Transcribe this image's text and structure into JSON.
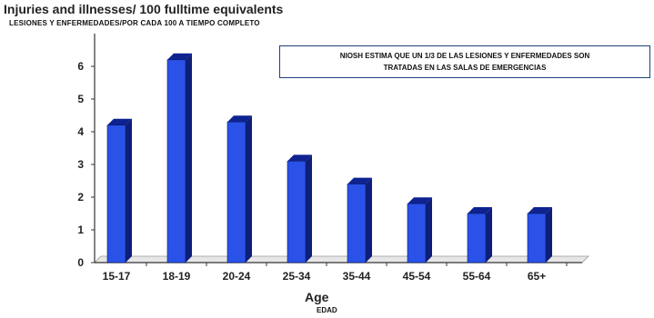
{
  "chart_data": {
    "type": "bar",
    "title": "Injuries and illnesses/ 100 fulltime equivalents",
    "subtitle": "LESIONES Y ENFERMEDADES/POR CADA 100 A TIEMPO COMPLETO",
    "annotation": {
      "line1": "NIOSH  ESTIMA QUE UN 1/3  DE LAS LESIONES Y ENFERMEDADES SON",
      "line2": "TRATADAS  EN LAS SALAS DE EMERGENCIAS"
    },
    "xlabel": "Age",
    "xlabel_secondary": "EDAD",
    "ylabel": "",
    "categories": [
      "15-17",
      "18-19",
      "20-24",
      "25-34",
      "35-44",
      "45-54",
      "55-64",
      "65+"
    ],
    "values": [
      4.2,
      6.2,
      4.3,
      3.1,
      2.4,
      1.8,
      1.5,
      1.5
    ],
    "ylim": [
      0,
      7
    ],
    "yticks": [
      0,
      1,
      2,
      3,
      4,
      5,
      6
    ],
    "grid": false,
    "legend": "none",
    "bar_color": "#2a52e8",
    "bar_side_color": "#0d1f7a",
    "bar_top_color": "#0e2290"
  }
}
